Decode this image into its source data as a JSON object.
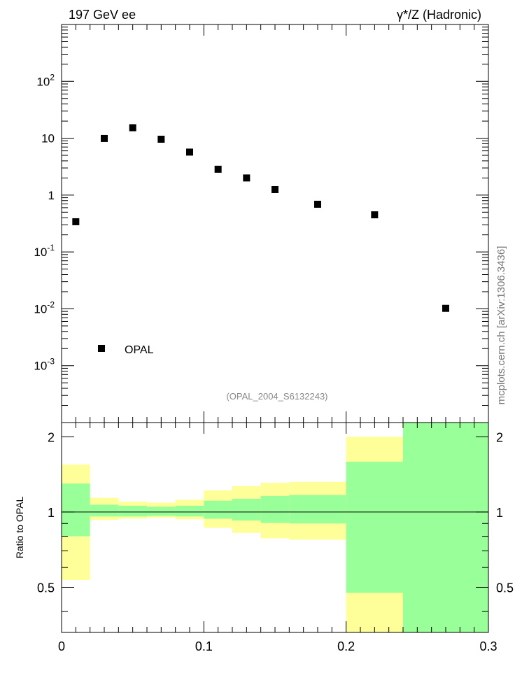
{
  "header": {
    "left_title": "197 GeV ee",
    "right_title": "γ*/Z (Hadronic)"
  },
  "side_label": "mcplots.cern.ch [arXiv:1306.3436]",
  "analysis_tag": "(OPAL_2004_S6132243)",
  "colors": {
    "marker": "#000000",
    "band_outer": "#ffff99",
    "band_inner": "#99ff99",
    "text_grey": "#888888",
    "side_text": "#777777"
  },
  "chart_data": [
    {
      "type": "scatter",
      "title": "",
      "xlabel": "",
      "ylabel": "",
      "yscale": "log",
      "xlim": [
        0,
        0.3
      ],
      "ylim": [
        0.0001,
        1000
      ],
      "grid": false,
      "legend": {
        "position": "bottom-left",
        "entries": [
          "OPAL"
        ]
      },
      "y_tick_labels": [
        "10^-3",
        "10^-2",
        "10^-1",
        "1",
        "10",
        "10^2"
      ],
      "series": [
        {
          "name": "OPAL",
          "x": [
            0.01,
            0.03,
            0.05,
            0.07,
            0.09,
            0.11,
            0.13,
            0.15,
            0.18,
            0.22,
            0.27
          ],
          "values": [
            0.34,
            9.9,
            15.3,
            9.6,
            5.7,
            2.85,
            2.0,
            1.25,
            0.69,
            0.45,
            0.0102
          ]
        }
      ]
    },
    {
      "type": "area",
      "title": "",
      "xlabel": "",
      "ylabel": "Ratio to OPAL",
      "xlim": [
        0,
        0.3
      ],
      "ylim": [
        0.33,
        2.28
      ],
      "grid": false,
      "x_tick_labels": [
        "0",
        "0.1",
        "0.2",
        "0.3"
      ],
      "y_tick_labels": [
        "0.5",
        "1",
        "2"
      ],
      "reference_line": 1,
      "bins": [
        {
          "x0": 0.0,
          "x1": 0.02,
          "outer": [
            0.535,
            1.55
          ],
          "inner": [
            0.8,
            1.3
          ]
        },
        {
          "x0": 0.02,
          "x1": 0.04,
          "outer": [
            0.93,
            1.14
          ],
          "inner": [
            0.96,
            1.07
          ]
        },
        {
          "x0": 0.04,
          "x1": 0.06,
          "outer": [
            0.94,
            1.1
          ],
          "inner": [
            0.96,
            1.06
          ]
        },
        {
          "x0": 0.06,
          "x1": 0.08,
          "outer": [
            0.95,
            1.09
          ],
          "inner": [
            0.965,
            1.05
          ]
        },
        {
          "x0": 0.08,
          "x1": 0.1,
          "outer": [
            0.935,
            1.12
          ],
          "inner": [
            0.96,
            1.06
          ]
        },
        {
          "x0": 0.1,
          "x1": 0.12,
          "outer": [
            0.865,
            1.22
          ],
          "inner": [
            0.94,
            1.11
          ]
        },
        {
          "x0": 0.12,
          "x1": 0.14,
          "outer": [
            0.825,
            1.27
          ],
          "inner": [
            0.925,
            1.13
          ]
        },
        {
          "x0": 0.14,
          "x1": 0.16,
          "outer": [
            0.785,
            1.31
          ],
          "inner": [
            0.905,
            1.16
          ]
        },
        {
          "x0": 0.16,
          "x1": 0.2,
          "outer": [
            0.775,
            1.32
          ],
          "inner": [
            0.9,
            1.17
          ]
        },
        {
          "x0": 0.2,
          "x1": 0.24,
          "outer": [
            0.33,
            2.0
          ],
          "inner": [
            0.475,
            1.59
          ]
        },
        {
          "x0": 0.24,
          "x1": 0.3,
          "outer": [
            0.33,
            2.28
          ],
          "inner": [
            0.33,
            2.28
          ]
        }
      ]
    }
  ]
}
